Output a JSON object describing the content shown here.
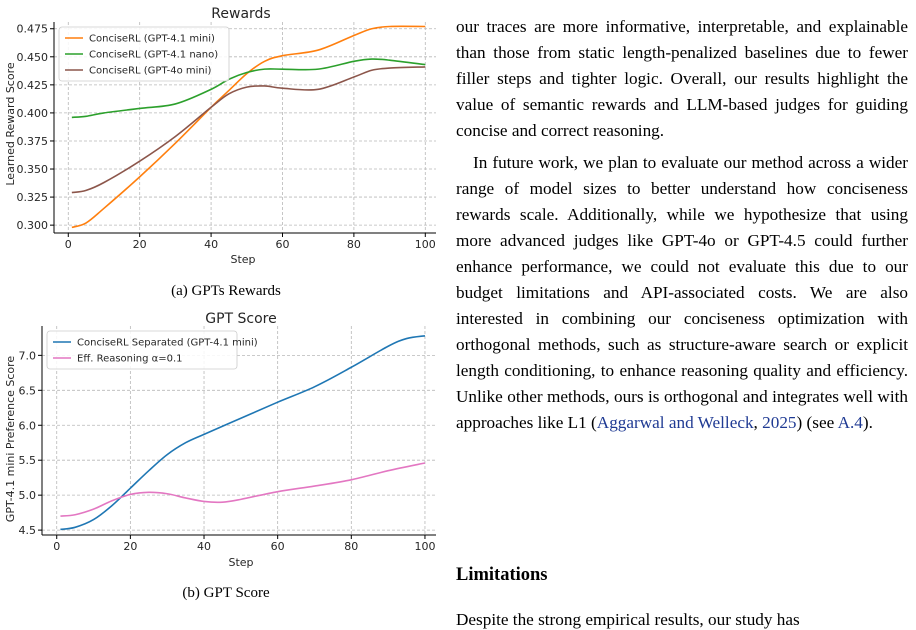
{
  "figure_a": {
    "caption": "(a) GPTs Rewards"
  },
  "figure_b": {
    "caption": "(b) GPT Score"
  },
  "text": {
    "para1": "our traces are more informative, interpretable, and explainable than those from static length-penalized baselines due to fewer filler steps and tighter logic. Overall, our results highlight the value of semantic rewards and LLM-based judges for guiding concise and correct reasoning.",
    "para2_main": "In future work, we plan to evaluate our method across a wider range of model sizes to better understand how conciseness rewards scale. Additionally, while we hypothesize that using more advanced judges like GPT-4o or GPT-4.5 could further enhance performance, we could not evaluate this due to our budget limitations and API-associated costs. We are also interested in combining our conciseness optimization with orthogonal methods, such as structure-aware search or explicit length conditioning, to enhance reasoning quality and efficiency. Unlike other methods, ours is orthogonal and integrates well with approaches like L1 (",
    "para2_cite": "Aggarwal and Welleck",
    "para2_comma": ", ",
    "para2_year": "2025",
    "para2_see": ") (see ",
    "para2_ref": "A.4",
    "para2_end": ").",
    "limitations_heading": "Limitations",
    "limitations_start": "Despite the strong empirical results, our study has"
  },
  "chart_data": [
    {
      "type": "line",
      "title": "Rewards",
      "xlabel": "Step",
      "ylabel": "Learned Reward Score",
      "xlim": [
        -4,
        103
      ],
      "ylim": [
        0.293,
        0.481
      ],
      "xticks": [
        0,
        20,
        40,
        60,
        80,
        100
      ],
      "yticks": [
        0.3,
        0.325,
        0.35,
        0.375,
        0.4,
        0.425,
        0.45,
        0.475
      ],
      "ytick_labels": [
        "0.300",
        "0.325",
        "0.350",
        "0.375",
        "0.400",
        "0.425",
        "0.450",
        "0.475"
      ],
      "grid": true,
      "legend": "top-left",
      "series": [
        {
          "name": "ConciseRL (GPT-4.1 mini)",
          "color": "#ff7f0e",
          "x": [
            1,
            5,
            10,
            20,
            30,
            40,
            45,
            50,
            55,
            60,
            70,
            80,
            85,
            90,
            100
          ],
          "y": [
            0.298,
            0.302,
            0.315,
            0.343,
            0.373,
            0.405,
            0.42,
            0.435,
            0.446,
            0.451,
            0.456,
            0.469,
            0.475,
            0.477,
            0.477
          ]
        },
        {
          "name": "ConciseRL (GPT-4.1 nano)",
          "color": "#2ca02c",
          "x": [
            1,
            5,
            10,
            20,
            30,
            40,
            45,
            50,
            55,
            60,
            70,
            80,
            85,
            90,
            100
          ],
          "y": [
            0.396,
            0.397,
            0.4,
            0.404,
            0.408,
            0.421,
            0.43,
            0.436,
            0.439,
            0.439,
            0.439,
            0.446,
            0.448,
            0.447,
            0.443
          ]
        },
        {
          "name": "ConciseRL (GPT-4o mini)",
          "color": "#8c564b",
          "x": [
            1,
            5,
            10,
            20,
            30,
            40,
            45,
            50,
            55,
            60,
            70,
            80,
            85,
            90,
            100
          ],
          "y": [
            0.329,
            0.331,
            0.338,
            0.357,
            0.379,
            0.405,
            0.417,
            0.423,
            0.424,
            0.422,
            0.421,
            0.432,
            0.438,
            0.44,
            0.441
          ]
        }
      ]
    },
    {
      "type": "line",
      "title": "GPT Score",
      "xlabel": "Step",
      "ylabel": "GPT-4.1 mini Preference Score",
      "xlim": [
        -4,
        103
      ],
      "ylim": [
        4.43,
        7.42
      ],
      "xticks": [
        0,
        20,
        40,
        60,
        80,
        100
      ],
      "yticks": [
        4.5,
        5.0,
        5.5,
        6.0,
        6.5,
        7.0
      ],
      "ytick_labels": [
        "4.5",
        "5.0",
        "5.5",
        "6.0",
        "6.5",
        "7.0"
      ],
      "grid": true,
      "legend": "top-left",
      "series": [
        {
          "name": "ConciseRL Separated (GPT-4.1 mini)",
          "color": "#1f77b4",
          "x": [
            1,
            5,
            10,
            15,
            20,
            25,
            30,
            35,
            40,
            50,
            60,
            70,
            80,
            90,
            95,
            100
          ],
          "y": [
            4.51,
            4.54,
            4.65,
            4.85,
            5.1,
            5.35,
            5.58,
            5.75,
            5.87,
            6.1,
            6.33,
            6.55,
            6.83,
            7.13,
            7.24,
            7.28
          ]
        },
        {
          "name": "Eff. Reasoning α=0.1",
          "color": "#e377c2",
          "x": [
            1,
            5,
            10,
            15,
            20,
            25,
            30,
            35,
            40,
            45,
            50,
            60,
            70,
            80,
            90,
            100
          ],
          "y": [
            4.7,
            4.72,
            4.8,
            4.92,
            5.01,
            5.04,
            5.02,
            4.96,
            4.91,
            4.9,
            4.94,
            5.05,
            5.13,
            5.22,
            5.35,
            5.46
          ]
        }
      ]
    }
  ]
}
